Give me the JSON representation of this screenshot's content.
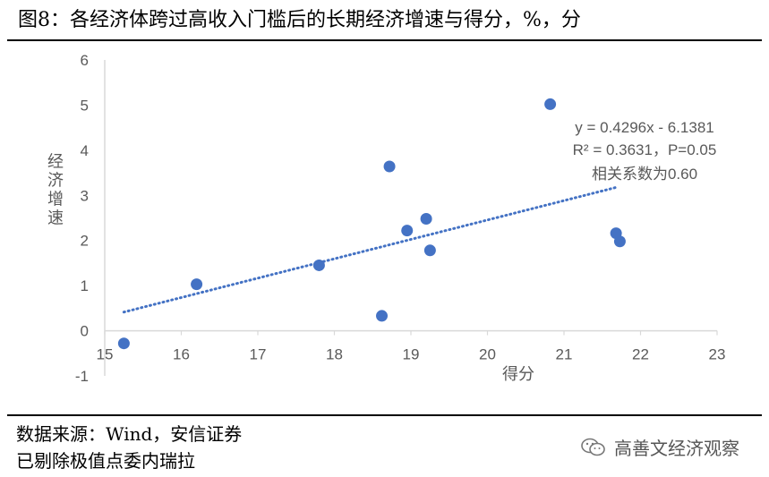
{
  "title": "图8：各经济体跨过高收入门槛后的长期经济增速与得分，%，分",
  "footer": {
    "source": "数据来源：Wind，安信证券",
    "note": "已剔除极值点委内瑞拉",
    "brand": "高善文经济观察"
  },
  "chart_data": {
    "type": "scatter",
    "xlabel": "得分",
    "ylabel": "经济增速",
    "xlim": [
      15,
      23
    ],
    "ylim": [
      -1,
      6
    ],
    "x_ticks": [
      "15",
      "16",
      "17",
      "18",
      "19",
      "20",
      "21",
      "22",
      "23"
    ],
    "y_ticks": [
      "-1",
      "0",
      "1",
      "2",
      "3",
      "4",
      "5",
      "6"
    ],
    "grid": false,
    "points": [
      {
        "x": 15.25,
        "y": -0.28
      },
      {
        "x": 16.2,
        "y": 1.03
      },
      {
        "x": 17.8,
        "y": 1.45
      },
      {
        "x": 18.62,
        "y": 0.33
      },
      {
        "x": 18.72,
        "y": 3.64
      },
      {
        "x": 18.95,
        "y": 2.22
      },
      {
        "x": 19.2,
        "y": 2.48
      },
      {
        "x": 19.25,
        "y": 1.78
      },
      {
        "x": 20.82,
        "y": 5.02
      },
      {
        "x": 21.68,
        "y": 2.16
      },
      {
        "x": 21.73,
        "y": 1.98
      }
    ],
    "trendline": {
      "slope": 0.4296,
      "intercept": -6.1381,
      "x_range": [
        15.25,
        21.7
      ],
      "style": "dotted"
    },
    "annotations": [
      "y = 0.4296x - 6.1381",
      "R² = 0.3631，P=0.05",
      "相关系数为0.60"
    ],
    "colors": {
      "points": "#4472C4",
      "trendline": "#4472C4",
      "axis": "#D9D9D9",
      "tick_label": "#595959"
    }
  }
}
